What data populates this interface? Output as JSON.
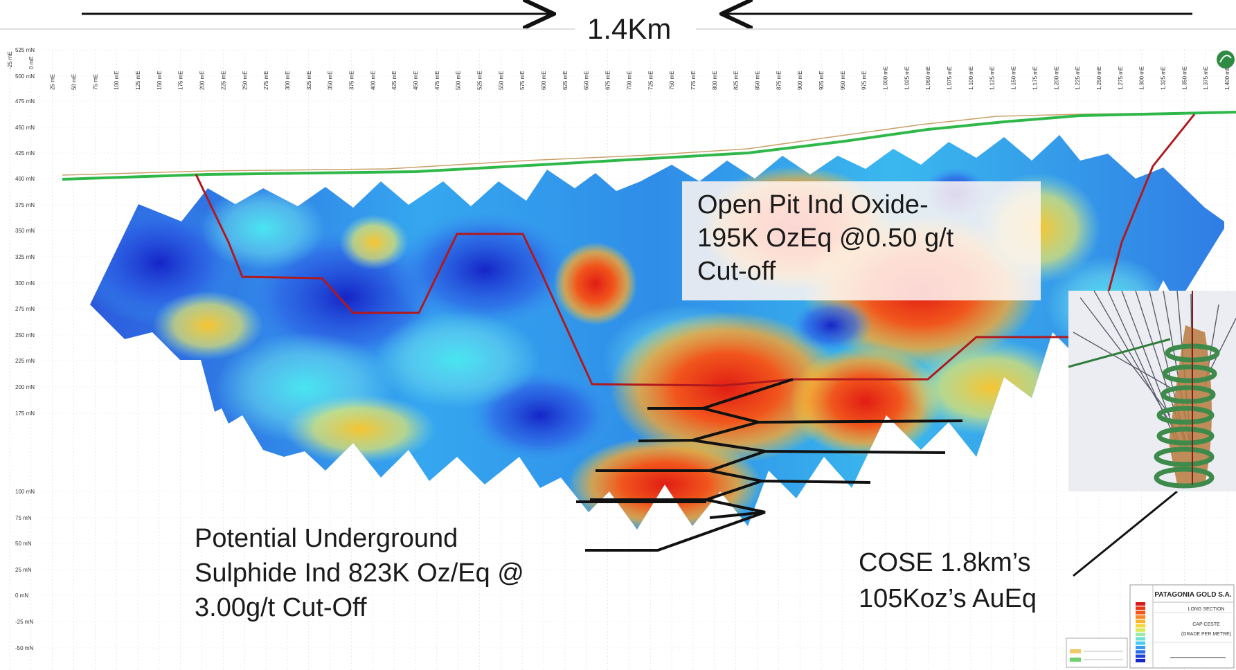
{
  "scale_annotation": {
    "label": "1.4Km"
  },
  "easting_axis": {
    "tick_labels": [
      "-25 mE",
      "0 mE",
      "25 mE",
      "50 mE",
      "75 mE",
      "100 mE",
      "125 mE",
      "150 mE",
      "175 mE",
      "200 mE",
      "225 mE",
      "250 mE",
      "275 mE",
      "300 mE",
      "325 mE",
      "350 mE",
      "375 mE",
      "400 mE",
      "425 mE",
      "450 mE",
      "475 mE",
      "500 mE",
      "525 mE",
      "550 mE",
      "575 mE",
      "600 mE",
      "625 mE",
      "650 mE",
      "675 mE",
      "700 mE",
      "725 mE",
      "750 mE",
      "775 mE",
      "800 mE",
      "825 mE",
      "850 mE",
      "875 mE",
      "900 mE",
      "925 mE",
      "950 mE",
      "975 mE",
      "1,000 mE",
      "1,025 mE",
      "1,050 mE",
      "1,075 mE",
      "1,100 mE",
      "1,125 mE",
      "1,150 mE",
      "1,175 mE",
      "1,200 mE",
      "1,225 mE",
      "1,250 mE",
      "1,275 mE",
      "1,300 mE",
      "1,325 mE",
      "1,350 mE",
      "1,375 mE",
      "1,400 mE"
    ]
  },
  "northing_axis": {
    "tick_labels": [
      "525 mN",
      "500 mN",
      "475 mN",
      "450 mN",
      "425 mN",
      "400 mN",
      "375 mN",
      "350 mN",
      "325 mN",
      "300 mN",
      "275 mN",
      "250 mN",
      "225 mN",
      "200 mN",
      "175 mN",
      "100 mN",
      "75 mN",
      "50 mN",
      "25 mN",
      "0 mN",
      "-25 mN",
      "-50 mN"
    ]
  },
  "annotations": {
    "open_pit": "Open Pit Ind Oxide-\n195K OzEq @0.50 g/t\nCut-off",
    "underground": "Potential Underground\nSulphide Ind 823K Oz/Eq @\n3.00g/t Cut-Off",
    "cose": "COSE 1.8km’s\n105Koz’s AuEq"
  },
  "title_block": {
    "company": "PATAGONIA GOLD S.A.",
    "line1": "LONG SECTION",
    "line2": "CAP CESTE",
    "line3": "(GRADE PER METRE)"
  },
  "colors": {
    "topography": "#2fb84a",
    "pit_outline": "#b0191e",
    "grade_high": "#e8381c",
    "grade_low": "#1a3fd6",
    "underground_lines": "#111111"
  }
}
